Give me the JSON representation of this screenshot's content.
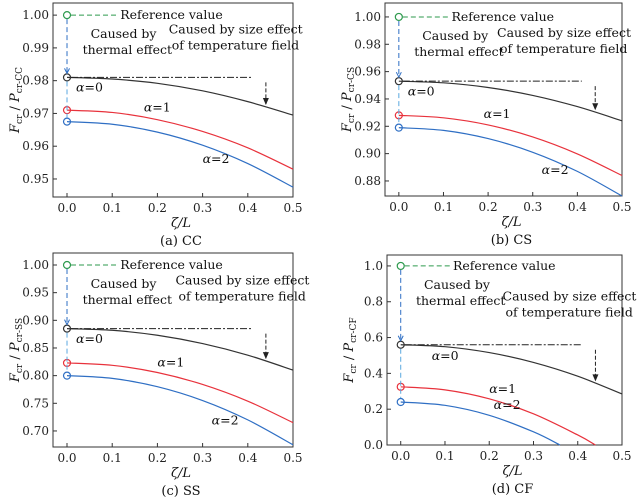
{
  "chart_data": [
    {
      "type": "line",
      "caption": "(a) CC",
      "xlabel": "ζ/L",
      "ylabel": "F_cr / P_cr-CC",
      "ylabel_sub": "cr-CC",
      "xlim": [
        -0.031,
        0.5
      ],
      "ylim": [
        0.9445,
        1.0037
      ],
      "xticks": [
        "0.0",
        "0.1",
        "0.2",
        "0.3",
        "0.4",
        "0.5"
      ],
      "yticks": [
        "0.95",
        "0.96",
        "0.97",
        "0.98",
        "0.99",
        "1.00"
      ],
      "ytick_values": [
        0.95,
        0.96,
        0.97,
        0.98,
        0.99,
        1.0
      ],
      "reference": 1.0,
      "series": [
        {
          "name": "α=0",
          "color": "#333333",
          "x": [
            0,
            0.1,
            0.2,
            0.3,
            0.4,
            0.5
          ],
          "y": [
            0.981,
            0.9805,
            0.9792,
            0.9769,
            0.9736,
            0.9695
          ]
        },
        {
          "name": "α=1",
          "color": "#e8323c",
          "x": [
            0,
            0.1,
            0.2,
            0.3,
            0.4,
            0.5
          ],
          "y": [
            0.971,
            0.9703,
            0.9681,
            0.9645,
            0.9595,
            0.953
          ]
        },
        {
          "name": "α=2",
          "color": "#2f6fc4",
          "x": [
            0,
            0.1,
            0.2,
            0.3,
            0.4,
            0.5
          ],
          "y": [
            0.9675,
            0.9667,
            0.9643,
            0.9603,
            0.9547,
            0.9475
          ]
        }
      ]
    },
    {
      "type": "line",
      "caption": "(b) CS",
      "xlabel": "ζ/L",
      "ylabel": "F_cr / P_cr-CS",
      "ylabel_sub": "cr-CS",
      "xlim": [
        -0.031,
        0.5
      ],
      "ylim": [
        0.869,
        1.0102
      ],
      "xticks": [
        "0.0",
        "0.1",
        "0.2",
        "0.3",
        "0.4",
        "0.5"
      ],
      "yticks": [
        "0.88",
        "0.90",
        "0.92",
        "0.94",
        "0.96",
        "0.98",
        "1.00"
      ],
      "ytick_values": [
        0.88,
        0.9,
        0.92,
        0.94,
        0.96,
        0.98,
        1.0
      ],
      "reference": 1.0,
      "series": [
        {
          "name": "α=0",
          "color": "#333333",
          "x": [
            0,
            0.1,
            0.2,
            0.3,
            0.4,
            0.5
          ],
          "y": [
            0.953,
            0.9518,
            0.9484,
            0.9426,
            0.9344,
            0.924
          ]
        },
        {
          "name": "α=1",
          "color": "#e8323c",
          "x": [
            0,
            0.1,
            0.2,
            0.3,
            0.4,
            0.5
          ],
          "y": [
            0.928,
            0.9262,
            0.921,
            0.9122,
            0.8998,
            0.884
          ]
        },
        {
          "name": "α=2",
          "color": "#2f6fc4",
          "x": [
            0,
            0.1,
            0.2,
            0.3,
            0.4,
            0.5
          ],
          "y": [
            0.919,
            0.917,
            0.911,
            0.901,
            0.887,
            0.869
          ]
        }
      ]
    },
    {
      "type": "line",
      "caption": "(c) SS",
      "xlabel": "ζ/L",
      "ylabel": "F_cr / P_cr-SS",
      "ylabel_sub": "cr-SS",
      "xlim": [
        -0.031,
        0.5
      ],
      "ylim": [
        0.671,
        1.0217
      ],
      "xticks": [
        "0.0",
        "0.1",
        "0.2",
        "0.3",
        "0.4",
        "0.5"
      ],
      "yticks": [
        "0.70",
        "0.75",
        "0.80",
        "0.85",
        "0.90",
        "0.95",
        "1.00"
      ],
      "ytick_values": [
        0.7,
        0.75,
        0.8,
        0.85,
        0.9,
        0.95,
        1.0
      ],
      "reference": 1.0,
      "series": [
        {
          "name": "α=0",
          "color": "#333333",
          "x": [
            0,
            0.1,
            0.2,
            0.3,
            0.4,
            0.5
          ],
          "y": [
            0.885,
            0.882,
            0.873,
            0.858,
            0.837,
            0.81
          ]
        },
        {
          "name": "α=1",
          "color": "#e8323c",
          "x": [
            0,
            0.1,
            0.2,
            0.3,
            0.4,
            0.5
          ],
          "y": [
            0.823,
            0.8187,
            0.8057,
            0.7841,
            0.7539,
            0.715
          ]
        },
        {
          "name": "α=2",
          "color": "#2f6fc4",
          "x": [
            0,
            0.1,
            0.2,
            0.3,
            0.4,
            0.5
          ],
          "y": [
            0.8,
            0.795,
            0.78,
            0.755,
            0.72,
            0.675
          ]
        }
      ]
    },
    {
      "type": "line",
      "caption": "(d) CF",
      "xlabel": "ζ/L",
      "ylabel": "F_cr / P_cr-CF",
      "ylabel_sub": "cr-CF",
      "xlim": [
        -0.031,
        0.5
      ],
      "ylim": [
        0,
        1.061
      ],
      "xticks": [
        "0.0",
        "0.1",
        "0.2",
        "0.3",
        "0.4",
        "0.5"
      ],
      "yticks": [
        "0.0",
        "0.2",
        "0.4",
        "0.6",
        "0.8",
        "1.0"
      ],
      "ytick_values": [
        0,
        0.2,
        0.4,
        0.6,
        0.8,
        1.0
      ],
      "reference": 1.0,
      "series": [
        {
          "name": "α=0",
          "color": "#333333",
          "x": [
            0,
            0.1,
            0.2,
            0.3,
            0.4,
            0.5
          ],
          "y": [
            0.56,
            0.549,
            0.516,
            0.461,
            0.384,
            0.285
          ]
        },
        {
          "name": "α=1",
          "color": "#e8323c",
          "x": [
            0,
            0.1,
            0.2,
            0.3,
            0.4,
            0.44
          ],
          "y": [
            0.325,
            0.308,
            0.258,
            0.174,
            0.056,
            0
          ]
        },
        {
          "name": "α=2",
          "color": "#2f6fc4",
          "x": [
            0,
            0.1,
            0.2,
            0.3,
            0.36
          ],
          "y": [
            0.24,
            0.2215,
            0.166,
            0.0734,
            0
          ]
        }
      ]
    }
  ],
  "annotations": {
    "reference": "Reference value",
    "thermal_1": "Caused by",
    "thermal_2": "thermal effect",
    "size_1": "Caused by size effect",
    "size_2": "of temperature field"
  },
  "colors": {
    "reference": "#2e9a4e",
    "thermal": "#2f6fc4",
    "thermal_light": "#5aa8e0"
  }
}
